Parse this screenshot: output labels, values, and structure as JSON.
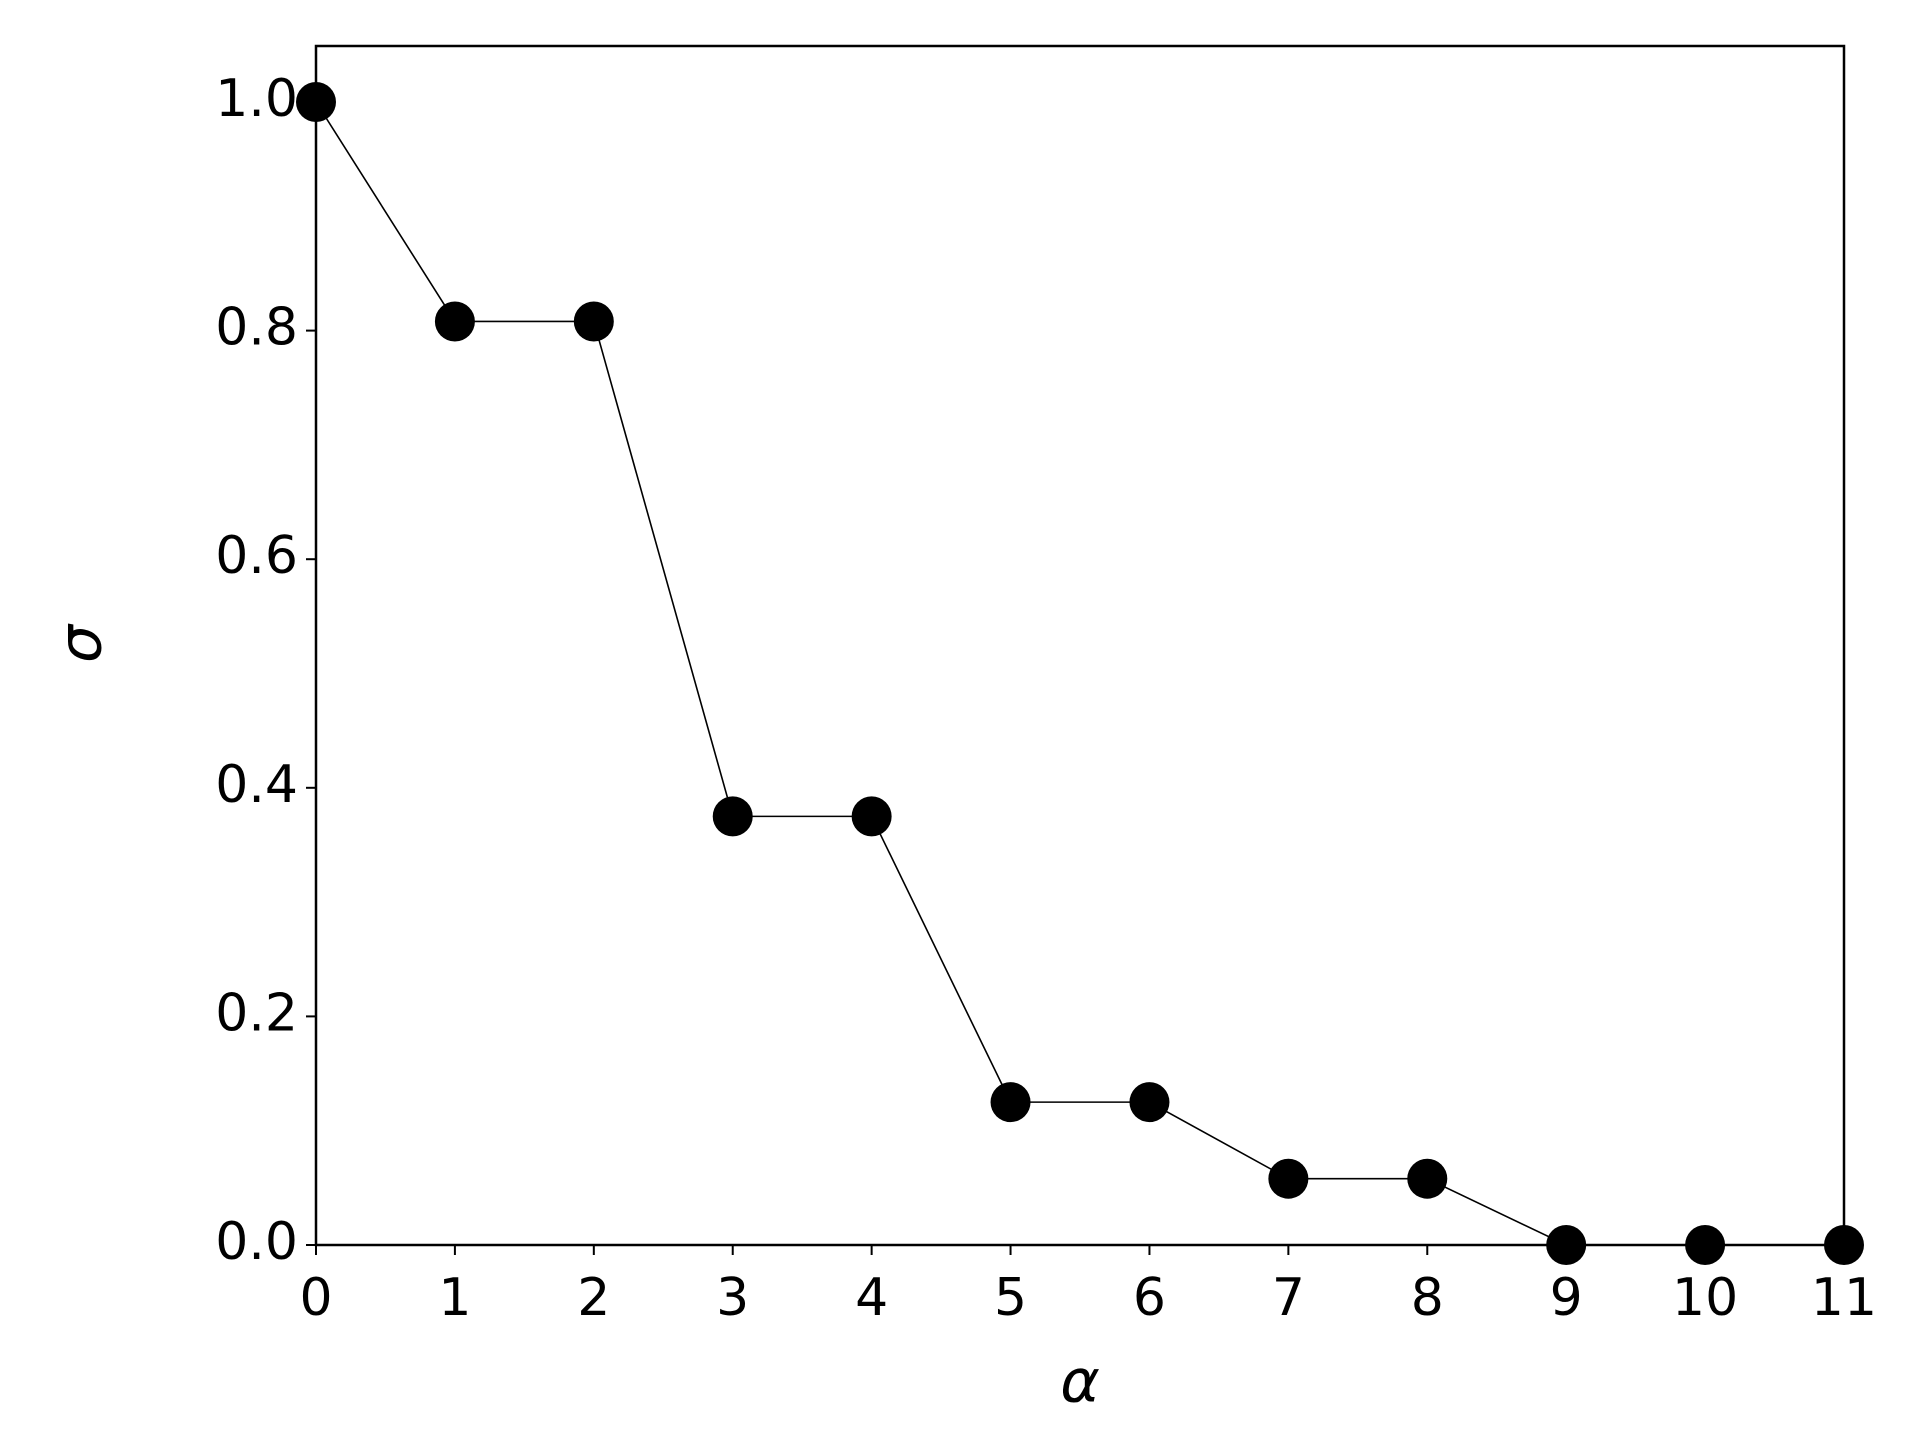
{
  "chart_data": {
    "type": "line",
    "x_label": "α",
    "y_label": "σ",
    "x": [
      0,
      1,
      2,
      3,
      4,
      5,
      6,
      7,
      8,
      9,
      10,
      11
    ],
    "series": [
      {
        "color": "#000000",
        "values": [
          1.0,
          0.808,
          0.808,
          0.375,
          0.375,
          0.125,
          0.125,
          0.058,
          0.058,
          0,
          0,
          0
        ]
      }
    ],
    "xlim": [
      0,
      11
    ],
    "ylim": [
      0,
      1.049
    ],
    "xticks": [
      0,
      1,
      2,
      3,
      4,
      5,
      6,
      7,
      8,
      9,
      10,
      11
    ],
    "yticks": [
      {
        "value": 0,
        "label": "0.0"
      },
      0.2,
      0.4,
      0.6,
      0.8,
      {
        "value": 1,
        "label": "1.0"
      }
    ],
    "grid": false,
    "markers": true
  }
}
